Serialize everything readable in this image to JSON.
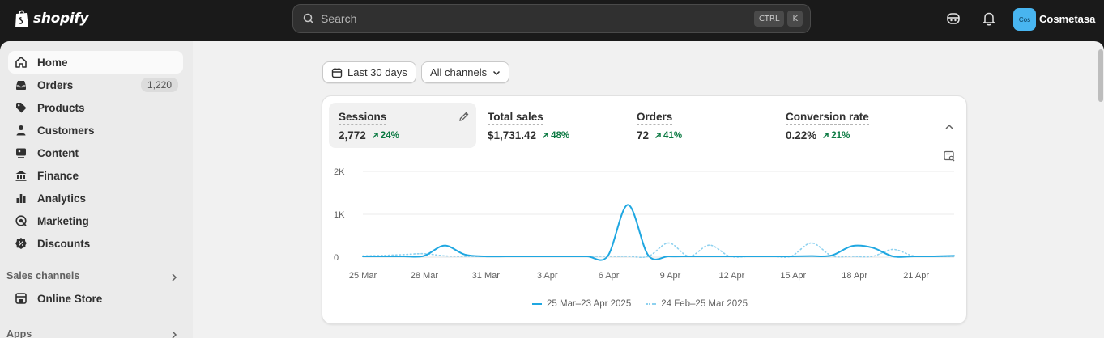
{
  "topbar": {
    "logo_text": "shopify",
    "search_placeholder": "Search",
    "shortcut_keys": [
      "CTRL",
      "K"
    ],
    "avatar_initials": "Cos",
    "store_name": "Cosmetasa"
  },
  "sidebar": {
    "items": [
      {
        "label": "Home",
        "icon": "home-icon",
        "active": true
      },
      {
        "label": "Orders",
        "icon": "inbox-icon",
        "badge": "1,220"
      },
      {
        "label": "Products",
        "icon": "tag-icon"
      },
      {
        "label": "Customers",
        "icon": "person-icon"
      },
      {
        "label": "Content",
        "icon": "content-icon"
      },
      {
        "label": "Finance",
        "icon": "bank-icon"
      },
      {
        "label": "Analytics",
        "icon": "bar-chart-icon"
      },
      {
        "label": "Marketing",
        "icon": "target-icon"
      },
      {
        "label": "Discounts",
        "icon": "discount-icon"
      }
    ],
    "sales_channels_label": "Sales channels",
    "online_store_label": "Online Store",
    "apps_label": "Apps"
  },
  "filters": {
    "date_range": "Last 30 days",
    "channels": "All channels"
  },
  "metrics": [
    {
      "label": "Sessions",
      "value": "2,772",
      "delta": "24%"
    },
    {
      "label": "Total sales",
      "value": "$1,731.42",
      "delta": "48%"
    },
    {
      "label": "Orders",
      "value": "72",
      "delta": "41%"
    },
    {
      "label": "Conversion rate",
      "value": "0.22%",
      "delta": "21%"
    }
  ],
  "chart_data": {
    "type": "line",
    "y_ticks": [
      "2K",
      "1K",
      "0"
    ],
    "x_tick_labels": [
      "25 Mar",
      "28 Mar",
      "31 Mar",
      "3 Apr",
      "6 Apr",
      "9 Apr",
      "12 Apr",
      "15 Apr",
      "18 Apr",
      "21 Apr"
    ],
    "ylim": [
      0,
      2000
    ],
    "series": [
      {
        "name": "25 Mar–23 Apr 2025",
        "color": "#1fa7e1",
        "style": "solid",
        "values": [
          5,
          10,
          15,
          30,
          270,
          60,
          5,
          8,
          10,
          12,
          15,
          10,
          20,
          1220,
          40,
          5,
          8,
          10,
          20,
          15,
          10,
          5,
          25,
          40,
          260,
          220,
          15,
          10,
          20,
          30
        ]
      },
      {
        "name": "24 Feb–25 Mar 2025",
        "color": "#8ed1ef",
        "style": "dotted",
        "values": [
          30,
          40,
          60,
          80,
          30,
          10,
          5,
          5,
          8,
          10,
          10,
          8,
          5,
          5,
          10,
          330,
          20,
          280,
          15,
          10,
          20,
          10,
          330,
          30,
          20,
          10,
          180,
          30,
          10,
          5
        ]
      }
    ],
    "grid": true,
    "legend": "bottom-center"
  }
}
